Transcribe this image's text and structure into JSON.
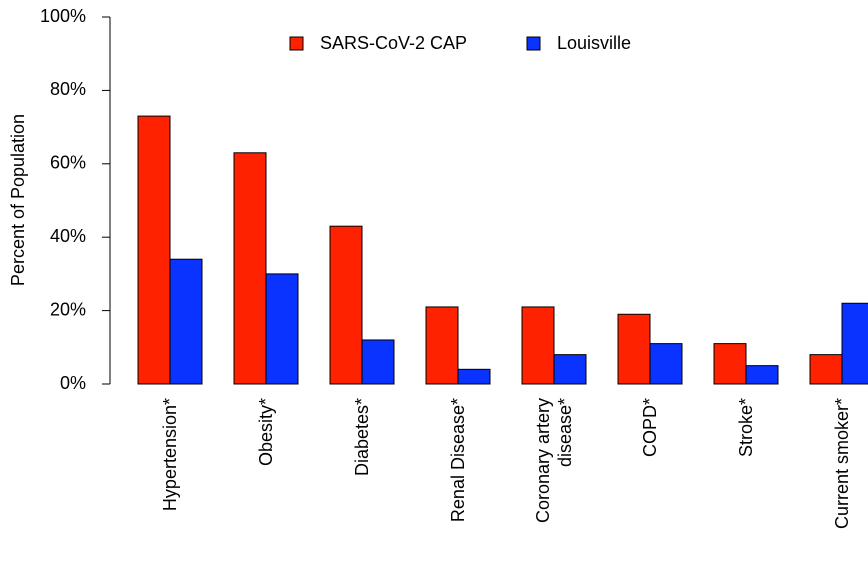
{
  "chart_data": {
    "type": "bar",
    "ylabel": "Percent of Population",
    "categories": [
      "Hypertension*",
      "Obesity*",
      "Diabetes*",
      "Renal Disease*",
      "Coronary artery\ndisease*",
      "COPD*",
      "Stroke*",
      "Current smoker*"
    ],
    "series": [
      {
        "name": "SARS-CoV-2 CAP",
        "color": "#ff2200",
        "values": [
          73,
          63,
          43,
          21,
          21,
          19,
          11,
          8
        ]
      },
      {
        "name": "Louisville",
        "color": "#0a33ff",
        "values": [
          34,
          30,
          12,
          4,
          8,
          11,
          5,
          22
        ]
      }
    ],
    "ylim": [
      0,
      100
    ],
    "yticks": [
      {
        "value": 0,
        "label": "0%"
      },
      {
        "value": 20,
        "label": "20%"
      },
      {
        "value": 40,
        "label": "40%"
      },
      {
        "value": 60,
        "label": "60%"
      },
      {
        "value": 80,
        "label": "80%"
      },
      {
        "value": 100,
        "label": "100%"
      }
    ],
    "legend": "top"
  }
}
